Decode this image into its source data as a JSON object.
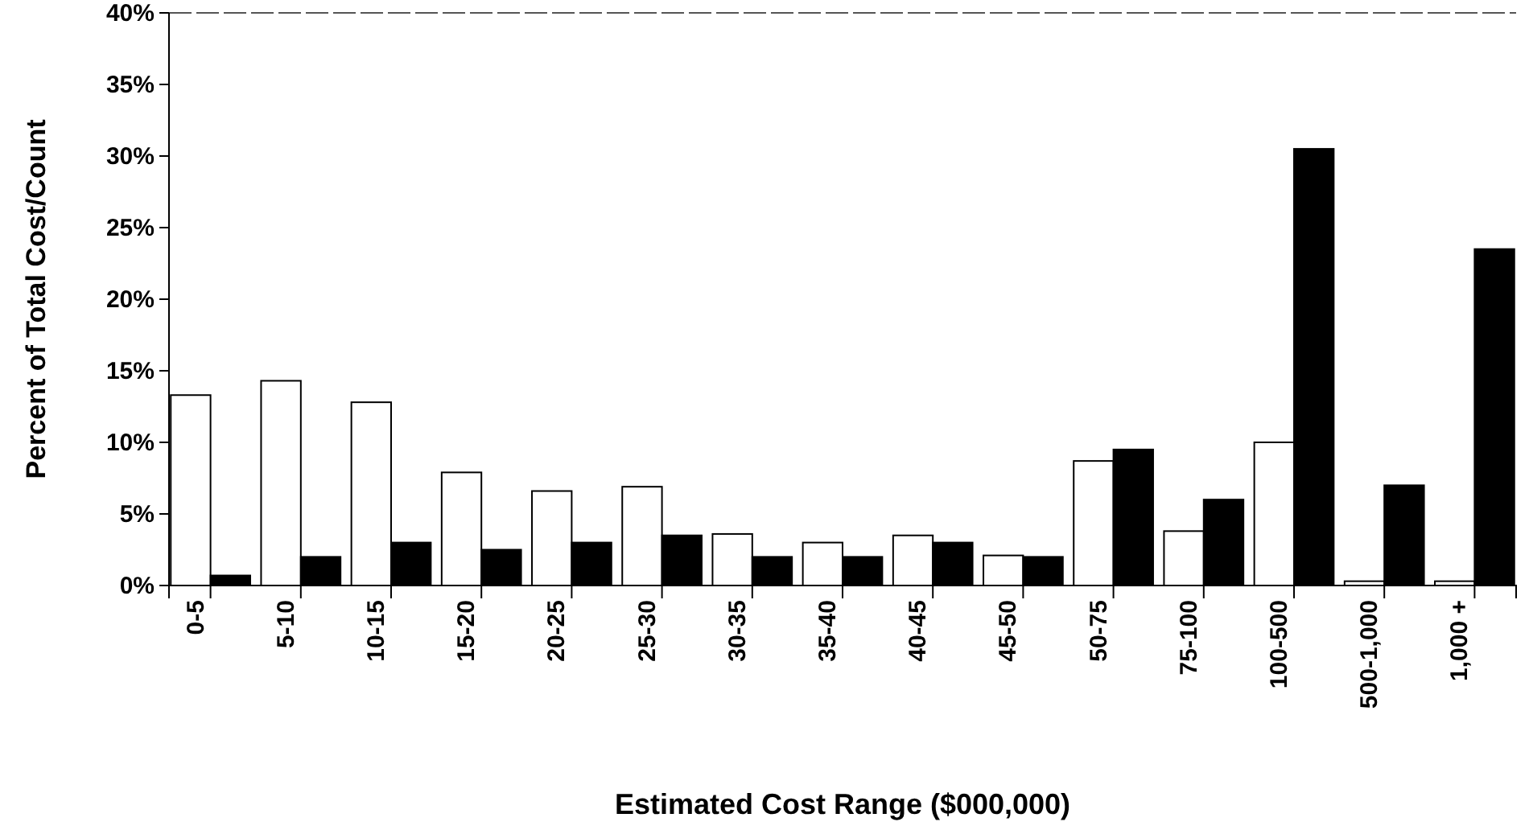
{
  "chart_data": {
    "type": "bar",
    "xlabel": "Estimated Cost Range ($000,000)",
    "ylabel": "Percent of Total Cost/Count",
    "categories": [
      "0-5",
      "5-10",
      "10-15",
      "15-20",
      "20-25",
      "25-30",
      "30-35",
      "35-40",
      "40-45",
      "45-50",
      "50-75",
      "75-100",
      "100-500",
      "500-1,000",
      "1,000 +"
    ],
    "series": [
      {
        "color": "#ffffff",
        "values": [
          13.3,
          14.3,
          12.8,
          7.9,
          6.6,
          6.9,
          3.6,
          3.0,
          3.5,
          2.1,
          8.7,
          3.8,
          10.0,
          0.3,
          0.3
        ]
      },
      {
        "color": "#000000",
        "values": [
          0.7,
          2.0,
          3.0,
          2.5,
          3.0,
          3.5,
          2.0,
          2.0,
          3.0,
          2.0,
          9.5,
          6.0,
          30.5,
          7.0,
          23.5
        ]
      }
    ],
    "ylim": [
      0,
      40
    ],
    "yticks": [
      {
        "value": 0,
        "label": "0%"
      },
      {
        "value": 5,
        "label": "5%"
      },
      {
        "value": 10,
        "label": "10%"
      },
      {
        "value": 15,
        "label": "15%"
      },
      {
        "value": 20,
        "label": "20%"
      },
      {
        "value": 25,
        "label": "25%"
      },
      {
        "value": 30,
        "label": "30%"
      },
      {
        "value": 35,
        "label": "35%"
      },
      {
        "value": 40,
        "label": "40%"
      }
    ],
    "grid": false
  }
}
